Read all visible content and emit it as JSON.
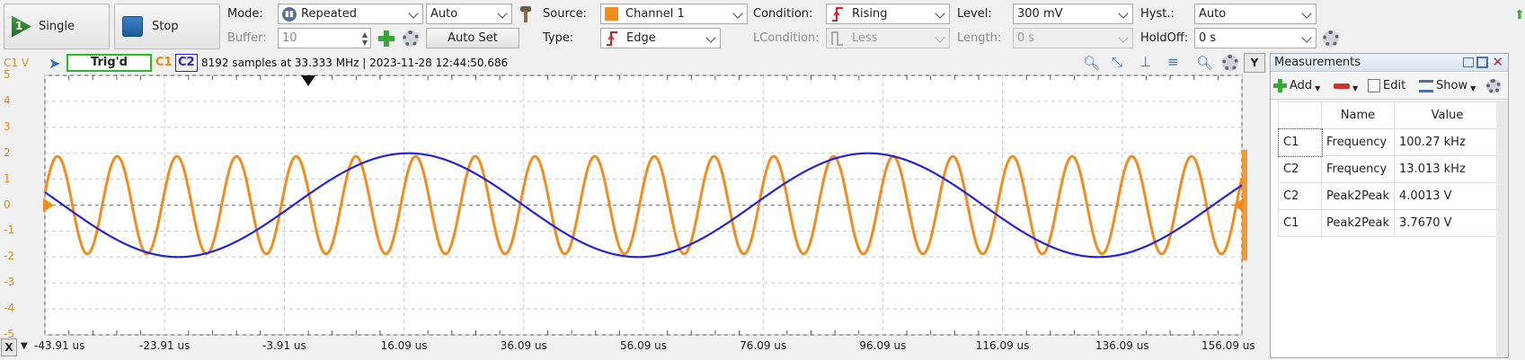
{
  "toolbar": {
    "single_label": "Single",
    "stop_label": "Stop",
    "mode_label": "Mode:",
    "mode_value": "Repeated",
    "auto_value": "Auto",
    "buffer_label": "Buffer:",
    "buffer_value": "10",
    "auto_set_label": "Auto Set",
    "source_label": "Source:",
    "source_value": "Channel 1",
    "type_label": "Type:",
    "type_value": "Edge",
    "condition_label": "Condition:",
    "condition_value": "Rising",
    "lcondition_label": "LCondition:",
    "lcondition_value": "Less",
    "level_label": "Level:",
    "level_value": "300 mV",
    "length_label": "Length:",
    "length_value": "0 s",
    "hyst_label": "Hyst.:",
    "hyst_value": "Auto",
    "holdoff_label": "HoldOff:",
    "holdoff_value": "0 s",
    "colors": {
      "channel1": "#f28c1c",
      "channel2": "#2323d8",
      "trig_border": "#22c022"
    }
  },
  "scope": {
    "y_axis_title": "C1 V",
    "trig_status": "Trig'd",
    "c1_label": "C1",
    "c2_label": "C2",
    "info": "8192 samples at 33.333 MHz | 2023-11-28 12:44:50.686",
    "y_button": "Y",
    "x_button": "X",
    "y_ticks": [
      "5",
      "4",
      "3",
      "2",
      "1",
      "0",
      "-1",
      "-2",
      "-3",
      "-4",
      "-5"
    ],
    "x_ticks": [
      "-43.91 us",
      "-23.91 us",
      "-3.91 us",
      "16.09 us",
      "36.09 us",
      "56.09 us",
      "76.09 us",
      "96.09 us",
      "116.09 us",
      "136.09 us",
      "156.09 us"
    ]
  },
  "chart_data": {
    "type": "line",
    "x_range_us": [
      -43.91,
      156.09
    ],
    "ylim": [
      -5,
      5
    ],
    "grid": true,
    "series": [
      {
        "name": "C1",
        "color": "#f28c1c",
        "frequency_khz": 100.27,
        "amplitude_v": 1.88,
        "offset_v": 0.0
      },
      {
        "name": "C2",
        "color": "#2323d8",
        "frequency_khz": 13.013,
        "amplitude_v": 2.0,
        "offset_v": 0.0
      }
    ]
  },
  "measurements": {
    "title": "Measurements",
    "add_label": "Add",
    "edit_label": "Edit",
    "show_label": "Show",
    "col_name": "Name",
    "col_value": "Value",
    "rows": [
      {
        "ch": "C1",
        "name": "Frequency",
        "value": "100.27 kHz"
      },
      {
        "ch": "C2",
        "name": "Frequency",
        "value": "13.013 kHz"
      },
      {
        "ch": "C2",
        "name": "Peak2Peak",
        "value": "4.0013 V"
      },
      {
        "ch": "C1",
        "name": "Peak2Peak",
        "value": "3.7670 V"
      }
    ]
  }
}
